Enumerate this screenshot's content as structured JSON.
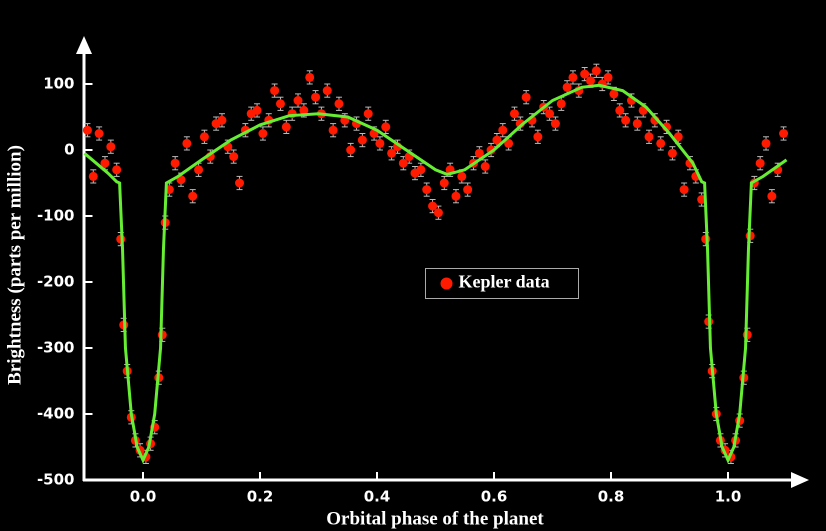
{
  "chart_data": {
    "type": "scatter",
    "xlabel": "Orbital phase of the planet",
    "ylabel": "Brightness (parts per million)",
    "xlim": [
      -0.1,
      1.1
    ],
    "ylim": [
      -500,
      150
    ],
    "xticks": [
      {
        "value": 0,
        "label": "0.0"
      },
      0.2,
      0.4,
      0.6,
      0.8,
      {
        "value": 1,
        "label": "1.0"
      }
    ],
    "yticks": [
      -500,
      -400,
      -300,
      -200,
      -100,
      0,
      100
    ],
    "legend": "center",
    "series": [
      {
        "name": "Kepler data",
        "color": "#ff1a00",
        "yerr": 10,
        "x": [
          -0.095,
          -0.085,
          -0.075,
          -0.065,
          -0.055,
          -0.045,
          -0.038,
          -0.033,
          -0.027,
          -0.02,
          -0.013,
          -0.005,
          0.005,
          0.013,
          0.02,
          0.027,
          0.033,
          0.038,
          0.045,
          0.055,
          0.065,
          0.075,
          0.085,
          0.095,
          0.105,
          0.115,
          0.125,
          0.135,
          0.145,
          0.155,
          0.165,
          0.175,
          0.185,
          0.195,
          0.205,
          0.215,
          0.225,
          0.235,
          0.245,
          0.255,
          0.265,
          0.275,
          0.285,
          0.295,
          0.305,
          0.315,
          0.325,
          0.335,
          0.345,
          0.355,
          0.365,
          0.375,
          0.385,
          0.395,
          0.405,
          0.415,
          0.425,
          0.435,
          0.445,
          0.455,
          0.465,
          0.475,
          0.485,
          0.495,
          0.505,
          0.515,
          0.525,
          0.535,
          0.545,
          0.555,
          0.565,
          0.575,
          0.585,
          0.595,
          0.605,
          0.615,
          0.625,
          0.635,
          0.645,
          0.655,
          0.665,
          0.675,
          0.685,
          0.695,
          0.705,
          0.715,
          0.725,
          0.735,
          0.745,
          0.755,
          0.765,
          0.775,
          0.785,
          0.795,
          0.805,
          0.815,
          0.825,
          0.835,
          0.845,
          0.855,
          0.865,
          0.875,
          0.885,
          0.895,
          0.905,
          0.915,
          0.925,
          0.935,
          0.945,
          0.955,
          0.962,
          0.967,
          0.973,
          0.98,
          0.987,
          0.995,
          1.005,
          1.013,
          1.02,
          1.027,
          1.033,
          1.038,
          1.045,
          1.055,
          1.065,
          1.075,
          1.085,
          1.095
        ],
        "values": [
          30,
          -40,
          25,
          -20,
          5,
          -30,
          -135,
          -265,
          -335,
          -405,
          -440,
          -455,
          -465,
          -445,
          -420,
          -345,
          -280,
          -110,
          -60,
          -20,
          -45,
          10,
          -70,
          -30,
          20,
          -10,
          40,
          45,
          5,
          -10,
          -50,
          30,
          55,
          60,
          25,
          45,
          90,
          70,
          35,
          55,
          75,
          60,
          110,
          80,
          55,
          90,
          30,
          70,
          45,
          0,
          40,
          15,
          55,
          25,
          10,
          35,
          -5,
          5,
          -20,
          -10,
          -35,
          -30,
          -60,
          -85,
          -95,
          -50,
          -30,
          -70,
          -40,
          -60,
          -20,
          -5,
          -25,
          0,
          15,
          30,
          10,
          55,
          40,
          80,
          45,
          20,
          65,
          55,
          40,
          70,
          95,
          110,
          90,
          115,
          105,
          120,
          100,
          110,
          85,
          60,
          45,
          75,
          40,
          60,
          20,
          45,
          10,
          35,
          -5,
          20,
          -60,
          -20,
          -40,
          -75,
          -135,
          -260,
          -335,
          -400,
          -440,
          -455,
          -465,
          -440,
          -410,
          -345,
          -280,
          -130,
          -50,
          -20,
          10,
          -70,
          -30,
          25
        ]
      },
      {
        "type": "line",
        "color": "#66ee33",
        "x": [
          -0.1,
          -0.08,
          -0.06,
          -0.045,
          -0.04,
          -0.035,
          -0.03,
          -0.02,
          -0.01,
          0,
          0.01,
          0.02,
          0.03,
          0.035,
          0.04,
          0.06,
          0.1,
          0.15,
          0.2,
          0.25,
          0.3,
          0.35,
          0.4,
          0.45,
          0.5,
          0.52,
          0.55,
          0.6,
          0.65,
          0.7,
          0.75,
          0.78,
          0.82,
          0.86,
          0.9,
          0.94,
          0.955,
          0.96,
          0.965,
          0.97,
          0.98,
          0.99,
          1,
          1.01,
          1.02,
          1.03,
          1.035,
          1.04,
          1.06,
          1.1
        ],
        "values": [
          -5,
          -20,
          -35,
          -48,
          -50,
          -150,
          -300,
          -400,
          -450,
          -470,
          -450,
          -400,
          -300,
          -150,
          -50,
          -40,
          -15,
          15,
          38,
          52,
          55,
          50,
          30,
          0,
          -30,
          -37,
          -30,
          0,
          40,
          75,
          95,
          98,
          90,
          65,
          25,
          -20,
          -48,
          -50,
          -150,
          -300,
          -400,
          -450,
          -470,
          -450,
          -400,
          -300,
          -150,
          -50,
          -40,
          -15
        ]
      }
    ]
  }
}
